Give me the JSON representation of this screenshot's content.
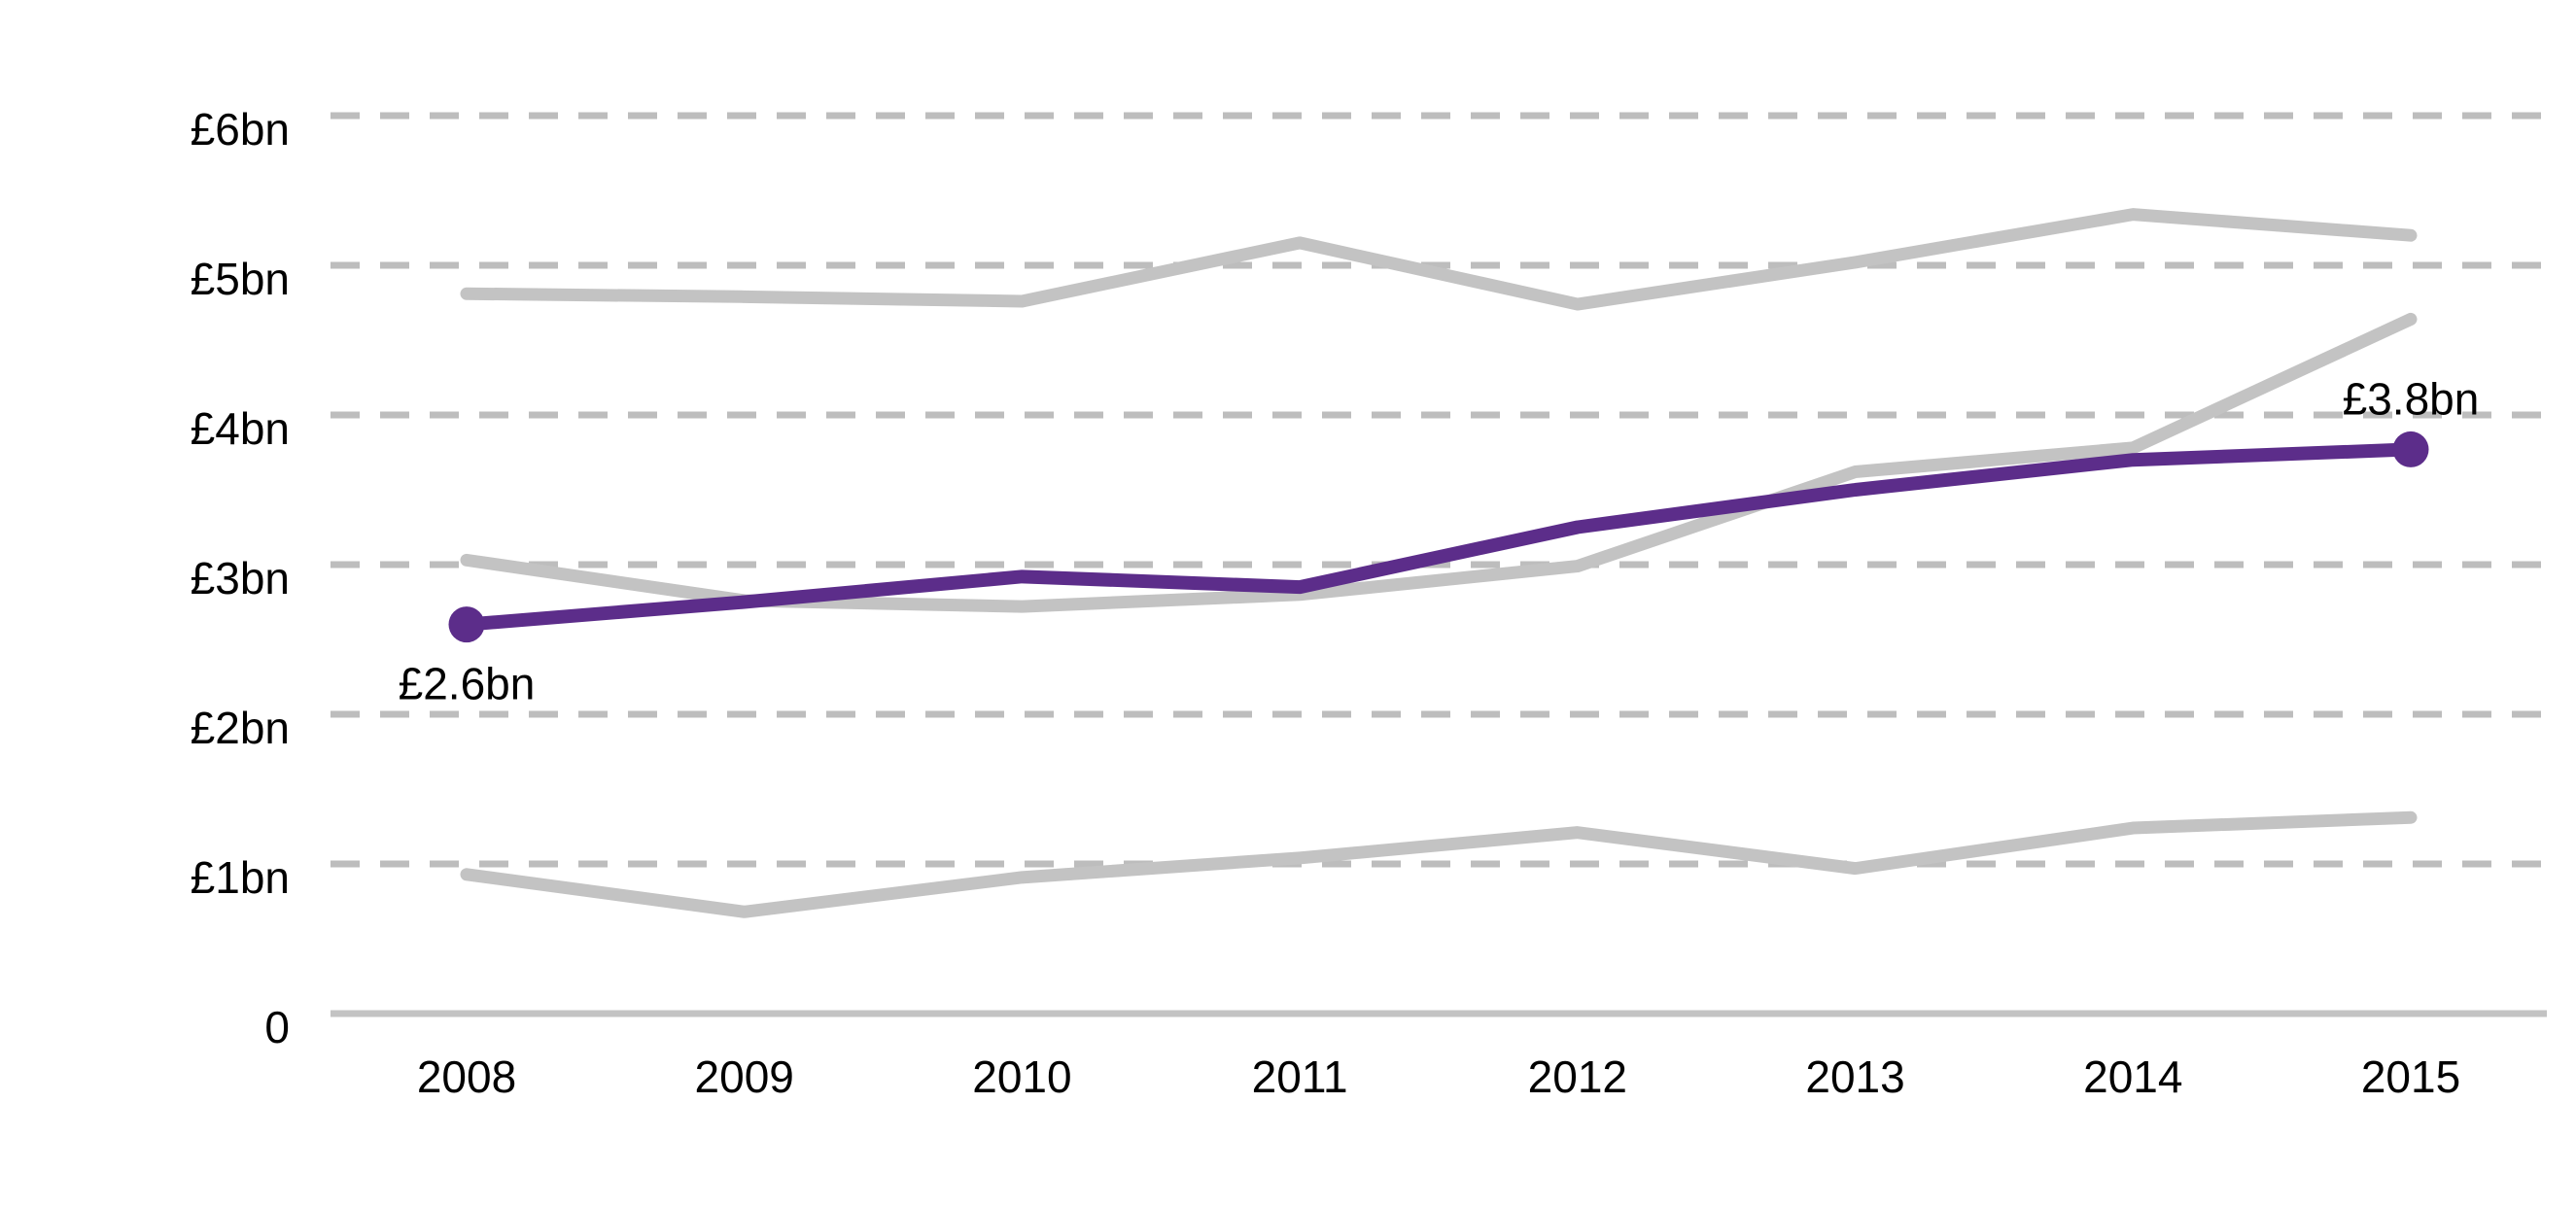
{
  "chart_data": {
    "type": "line",
    "categories": [
      "2008",
      "2009",
      "2010",
      "2011",
      "2012",
      "2013",
      "2014",
      "2015"
    ],
    "series": [
      {
        "name": "highlighted-series",
        "role": "highlight",
        "color": "#5C2D8A",
        "values": [
          2.6,
          2.75,
          2.92,
          2.85,
          3.25,
          3.5,
          3.7,
          3.77
        ],
        "endpoint_labels": {
          "first": "£2.6bn",
          "last": "£3.8bn"
        },
        "endpoint_dots": true
      },
      {
        "name": "comparator-top",
        "role": "context",
        "color": "#C3C3C3",
        "values": [
          4.81,
          4.79,
          4.76,
          5.15,
          4.74,
          5.02,
          5.34,
          5.2
        ],
        "endpoint_dots": false
      },
      {
        "name": "comparator-middle",
        "role": "context",
        "color": "#C3C3C3",
        "values": [
          3.03,
          2.76,
          2.72,
          2.8,
          2.99,
          3.62,
          3.78,
          4.64
        ],
        "endpoint_dots": false
      },
      {
        "name": "comparator-bottom",
        "role": "context",
        "color": "#C3C3C3",
        "values": [
          0.93,
          0.68,
          0.91,
          1.04,
          1.21,
          0.97,
          1.24,
          1.31
        ],
        "endpoint_dots": false
      }
    ],
    "y_axis": {
      "unit": "£bn",
      "ylim": [
        0,
        6.5
      ],
      "ticks": [
        {
          "value": 6,
          "label": "£6bn",
          "gridline": "dashed"
        },
        {
          "value": 5,
          "label": "£5bn",
          "gridline": "dashed"
        },
        {
          "value": 4,
          "label": "£4bn",
          "gridline": "dashed"
        },
        {
          "value": 3,
          "label": "£3bn",
          "gridline": "dashed"
        },
        {
          "value": 2,
          "label": "£2bn",
          "gridline": "dashed"
        },
        {
          "value": 1,
          "label": "£1bn",
          "gridline": "dashed"
        },
        {
          "value": 0,
          "label": "0",
          "gridline": "solid-baseline"
        }
      ]
    },
    "x_axis": {
      "labels": [
        "2008",
        "2009",
        "2010",
        "2011",
        "2012",
        "2013",
        "2014",
        "2015"
      ]
    },
    "legend": "none",
    "grid": "horizontal-dashed",
    "colors": {
      "highlight": "#5C2D8A",
      "context_lines": "#C3C3C3",
      "gridline": "#BDBDBD",
      "baseline": "#C3C3C3",
      "text": "#000000"
    }
  }
}
